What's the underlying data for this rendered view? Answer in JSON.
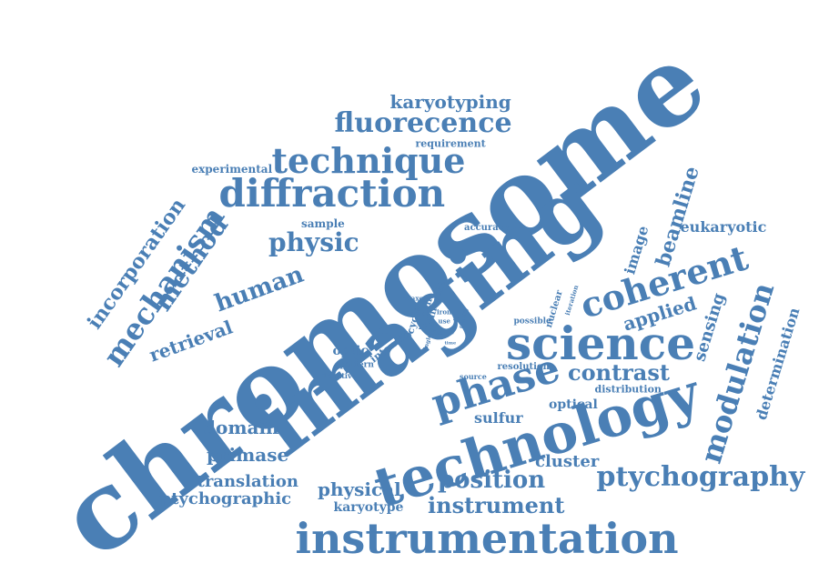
{
  "cloud": {
    "color": "#4a7fb5",
    "background": "#ffffff",
    "words": [
      "chromosome",
      "imaging",
      "technology",
      "instrumentation",
      "science",
      "diffraction",
      "technique",
      "phase",
      "coherent",
      "ptychography",
      "fluorecence",
      "physic",
      "modulation",
      "position",
      "instrument",
      "contrast",
      "mechanism",
      "method",
      "human",
      "incorporation",
      "retrieval",
      "beamline",
      "karyotyping",
      "ptychographic",
      "physical",
      "translation",
      "primase",
      "domain",
      "applied",
      "sensing",
      "determination",
      "eukaryotic",
      "cluster",
      "sulfur",
      "optical",
      "image",
      "optic",
      "requirement",
      "experimental",
      "sample",
      "accuracy",
      "distribution",
      "resolution",
      "karyotype",
      "pattern",
      "iterative",
      "source",
      "possible",
      "nuclear",
      "iteration",
      "intensity",
      "relaxes",
      "cycle",
      "cell",
      "different",
      "ray",
      "iron",
      "use",
      "result",
      "quality",
      "single",
      "size",
      "time"
    ]
  }
}
